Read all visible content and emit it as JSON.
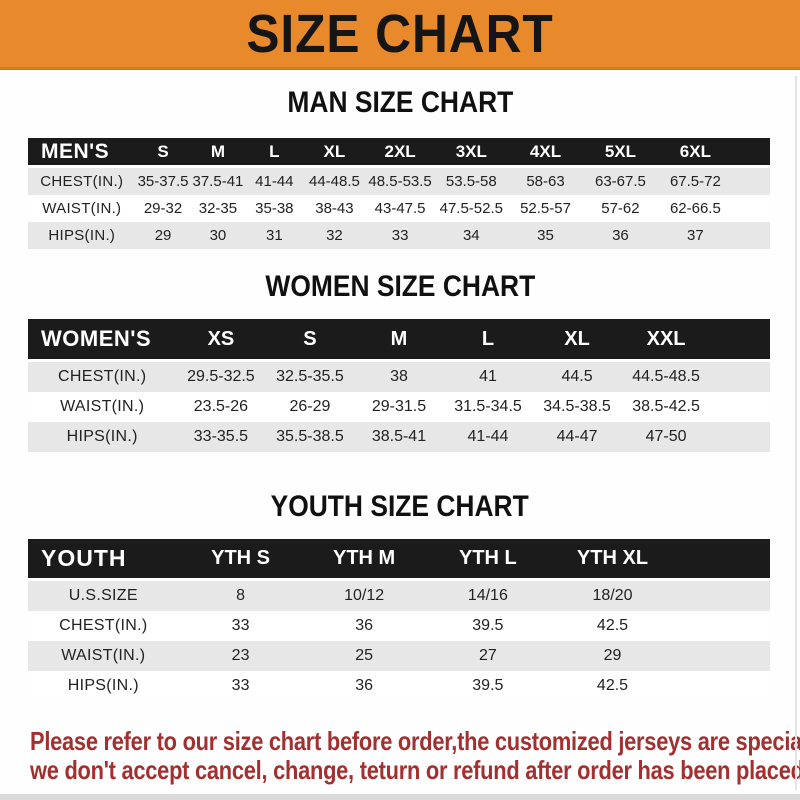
{
  "banner": {
    "title": "SIZE CHART",
    "bg_color": "#E8892B"
  },
  "sections": [
    {
      "id": "men",
      "heading": "MAN SIZE CHART",
      "header_label": "MEN'S",
      "columns": [
        "S",
        "M",
        "L",
        "XL",
        "2XL",
        "3XL",
        "4XL",
        "5XL",
        "6XL"
      ],
      "rows": [
        {
          "label": "CHEST(IN.)",
          "values": [
            "35-37.5",
            "37.5-41",
            "41-44",
            "44-48.5",
            "48.5-53.5",
            "53.5-58",
            "58-63",
            "63-67.5",
            "67.5-72"
          ]
        },
        {
          "label": "WAIST(IN.)",
          "values": [
            "29-32",
            "32-35",
            "35-38",
            "38-43",
            "43-47.5",
            "47.5-52.5",
            "52.5-57",
            "57-62",
            "62-66.5"
          ]
        },
        {
          "label": "HIPS(IN.)",
          "values": [
            "29",
            "30",
            "31",
            "32",
            "33",
            "34",
            "35",
            "36",
            "37"
          ]
        }
      ]
    },
    {
      "id": "women",
      "heading": "WOMEN SIZE CHART",
      "header_label": "WOMEN'S",
      "columns": [
        "XS",
        "S",
        "M",
        "L",
        "XL",
        "XXL"
      ],
      "rows": [
        {
          "label": "CHEST(IN.)",
          "values": [
            "29.5-32.5",
            "32.5-35.5",
            "38",
            "41",
            "44.5",
            "44.5-48.5"
          ]
        },
        {
          "label": "WAIST(IN.)",
          "values": [
            "23.5-26",
            "26-29",
            "29-31.5",
            "31.5-34.5",
            "34.5-38.5",
            "38.5-42.5"
          ]
        },
        {
          "label": "HIPS(IN.)",
          "values": [
            "33-35.5",
            "35.5-38.5",
            "38.5-41",
            "41-44",
            "44-47",
            "47-50"
          ]
        }
      ]
    },
    {
      "id": "youth",
      "heading": "YOUTH SIZE CHART",
      "header_label": "YOUTH",
      "columns": [
        "YTH S",
        "YTH M",
        "YTH L",
        "YTH XL"
      ],
      "rows": [
        {
          "label": "U.S.SIZE",
          "values": [
            "8",
            "10/12",
            "14/16",
            "18/20"
          ]
        },
        {
          "label": "CHEST(IN.)",
          "values": [
            "33",
            "36",
            "39.5",
            "42.5"
          ]
        },
        {
          "label": "WAIST(IN.)",
          "values": [
            "23",
            "25",
            "27",
            "29"
          ]
        },
        {
          "label": "HIPS(IN.)",
          "values": [
            "33",
            "36",
            "39.5",
            "42.5"
          ]
        }
      ]
    }
  ],
  "footer": {
    "line1": "Please refer to our size chart before order,the customized jerseys are special products,",
    "line2": "we don't accept cancel, change, teturn or refund after order has been placed!",
    "text_color": "#A33030"
  },
  "colors": {
    "header_bar": "#1B1B1B",
    "row_shaded": "#E7E7E7",
    "banner_bg": "#E8892B"
  }
}
